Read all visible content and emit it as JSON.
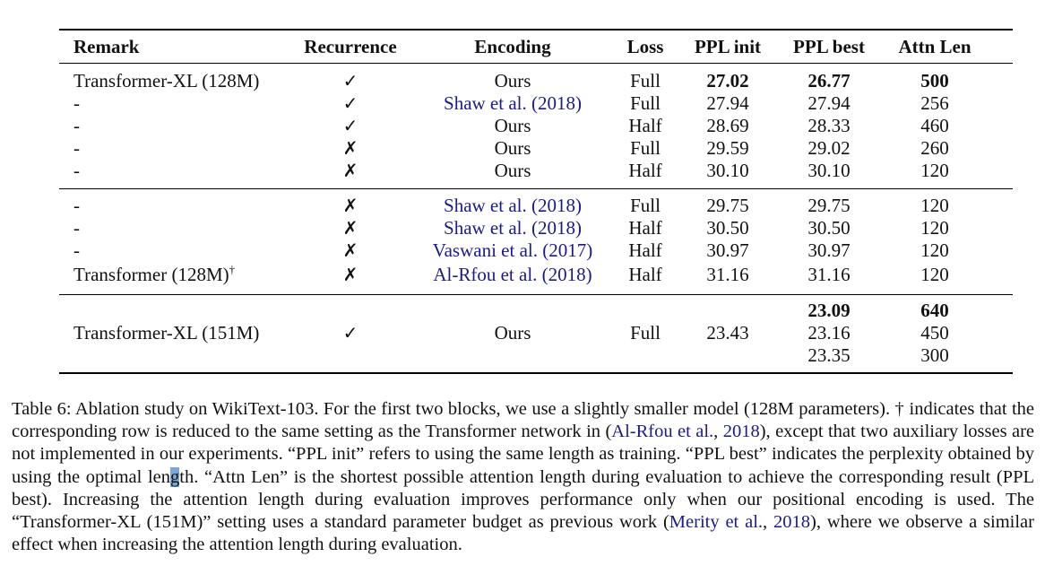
{
  "table": {
    "headers": {
      "remark": "Remark",
      "recurrence": "Recurrence",
      "encoding": "Encoding",
      "loss": "Loss",
      "ppl_init": "PPL init",
      "ppl_best": "PPL best",
      "attn_len": "Attn Len"
    },
    "rows": [
      {
        "remark": "Transformer-XL (128M)",
        "rec": "✓",
        "enc": "Ours",
        "loss": "Full",
        "init": "27.02",
        "best": "26.77",
        "attn": "500"
      },
      {
        "remark": "-",
        "rec": "✓",
        "enc": "Shaw et al. (2018)",
        "loss": "Full",
        "init": "27.94",
        "best": "27.94",
        "attn": "256"
      },
      {
        "remark": "-",
        "rec": "✓",
        "enc": "Ours",
        "loss": "Half",
        "init": "28.69",
        "best": "28.33",
        "attn": "460"
      },
      {
        "remark": "-",
        "rec": "✗",
        "enc": "Ours",
        "loss": "Full",
        "init": "29.59",
        "best": "29.02",
        "attn": "260"
      },
      {
        "remark": "-",
        "rec": "✗",
        "enc": "Ours",
        "loss": "Half",
        "init": "30.10",
        "best": "30.10",
        "attn": "120"
      },
      {
        "remark": "-",
        "rec": "✗",
        "enc": "Shaw et al. (2018)",
        "loss": "Full",
        "init": "29.75",
        "best": "29.75",
        "attn": "120"
      },
      {
        "remark": "-",
        "rec": "✗",
        "enc": "Shaw et al. (2018)",
        "loss": "Half",
        "init": "30.50",
        "best": "30.50",
        "attn": "120"
      },
      {
        "remark": "-",
        "rec": "✗",
        "enc": "Vaswani et al. (2017)",
        "loss": "Half",
        "init": "30.97",
        "best": "30.97",
        "attn": "120"
      },
      {
        "remark": "Transformer (128M)",
        "remark_sup": "†",
        "rec": "✗",
        "enc": "Al-Rfou et al. (2018)",
        "loss": "Half",
        "init": "31.16",
        "best": "31.16",
        "attn": "120"
      }
    ],
    "block3": {
      "remark": "Transformer-XL (151M)",
      "rec": "✓",
      "enc": "Ours",
      "loss": "Full",
      "init": "23.43",
      "best": [
        "23.09",
        "23.16",
        "23.35"
      ],
      "attn": [
        "640",
        "450",
        "300"
      ]
    }
  },
  "caption": {
    "p1": "Table 6:  Ablation study on WikiText-103.  For the first two blocks, we use a slightly smaller model (128M parameters). † indicates that the corresponding row is reduced to the same setting as the Transformer network in (",
    "cite1a": "Al-Rfou et al.",
    "sep1": ", ",
    "cite1b": "2018",
    "p2": "), except that two auxiliary losses are not implemented in our experiments. “PPL init” refers to using the same length as training. “PPL best” indicates the perplexity obtained by using the optimal len",
    "hl": "g",
    "p3": "th.  “Attn Len” is the shortest possible attention length during evaluation to achieve the corresponding result (PPL best).  Increasing the attention length during evaluation improves performance only when our positional encoding is used.  The “Transformer-XL (151M)” setting uses a standard parameter budget as previous work (",
    "cite2a": "Merity et al.",
    "sep2": ", ",
    "cite2b": "2018",
    "p4": "), where we observe a similar effect when increasing the attention length during evaluation."
  }
}
